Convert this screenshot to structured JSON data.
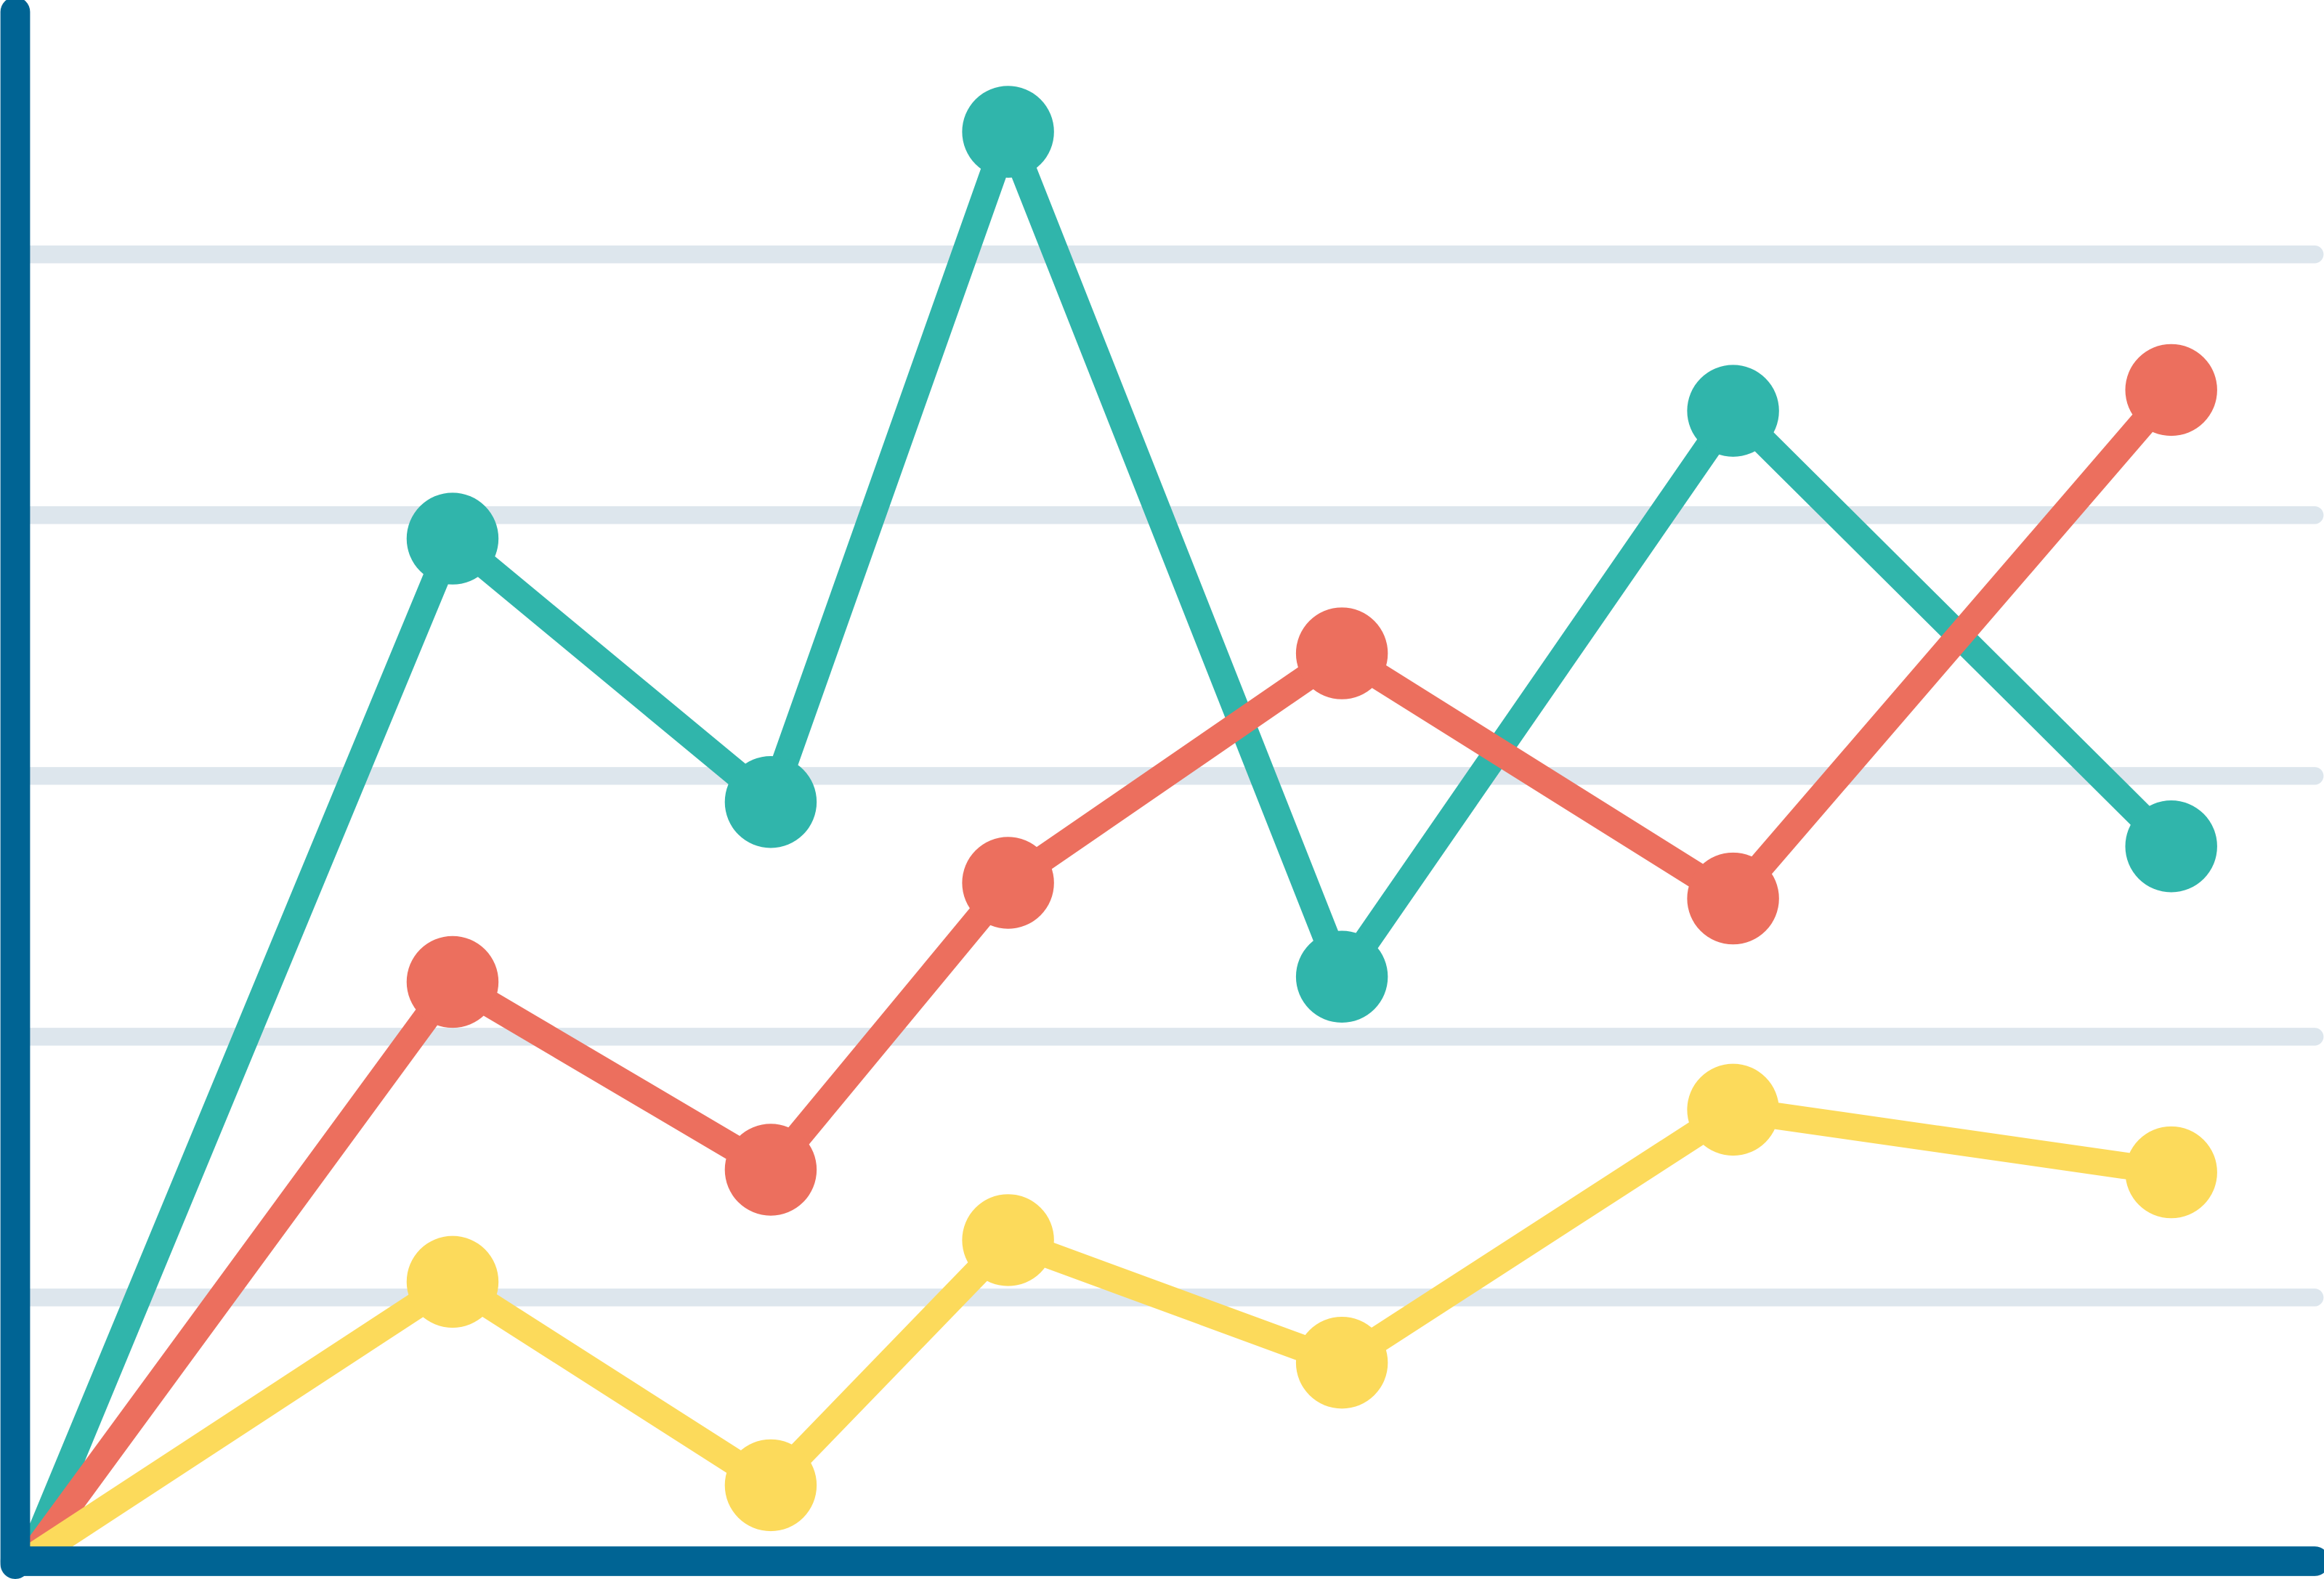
{
  "chart_data": {
    "type": "line",
    "grid": true,
    "x": [
      0,
      1.62,
      2.84,
      3.75,
      5.03,
      6.53,
      8.21
    ],
    "xlim": [
      0,
      8.76
    ],
    "ylim": [
      0,
      5.93
    ],
    "yticks": [
      1,
      2,
      3,
      4,
      5
    ],
    "axis_color": "#006494",
    "grid_color": "#dde6ed",
    "series": [
      {
        "color": "#30b5ab",
        "values": [
          0,
          3.91,
          2.9,
          5.47,
          2.23,
          4.4,
          2.73
        ]
      },
      {
        "color": "#ec6f5e",
        "values": [
          0,
          2.21,
          1.49,
          2.59,
          3.47,
          2.53,
          4.48
        ]
      },
      {
        "color": "#fcda5b",
        "values": [
          0,
          1.06,
          0.28,
          1.22,
          0.75,
          1.72,
          1.48
        ]
      }
    ]
  }
}
